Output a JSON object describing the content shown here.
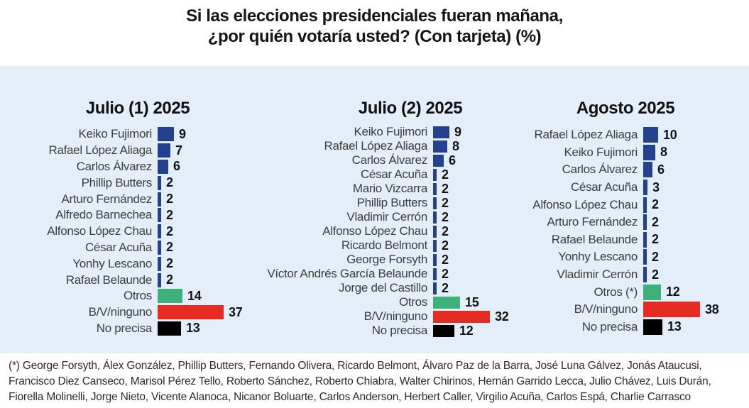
{
  "title": {
    "line1": "Si las elecciones presidenciales fueran mañana,",
    "line2": "¿por quién votaría usted? (Con tarjeta) (%)"
  },
  "palette": {
    "candidate": "#24418F",
    "otros": "#3EB07A",
    "bvninguno": "#E72A22",
    "noprecisa": "#000000",
    "panel_bg": "#E3EEF8"
  },
  "chart_data": [
    {
      "type": "bar",
      "orientation": "horizontal",
      "title": "Julio (1) 2025",
      "xlim": [
        0,
        40
      ],
      "value_unit": "%",
      "rows": [
        {
          "label": "Keiko Fujimori",
          "value": 9,
          "color": "candidate"
        },
        {
          "label": "Rafael López Aliaga",
          "value": 7,
          "color": "candidate"
        },
        {
          "label": "Carlos Álvarez",
          "value": 6,
          "color": "candidate"
        },
        {
          "label": "Phillip Butters",
          "value": 2,
          "color": "candidate"
        },
        {
          "label": "Arturo Fernández",
          "value": 2,
          "color": "candidate"
        },
        {
          "label": "Alfredo Barnechea",
          "value": 2,
          "color": "candidate"
        },
        {
          "label": "Alfonso López Chau",
          "value": 2,
          "color": "candidate"
        },
        {
          "label": "César Acuña",
          "value": 2,
          "color": "candidate"
        },
        {
          "label": "Yonhy Lescano",
          "value": 2,
          "color": "candidate"
        },
        {
          "label": "Rafael Belaunde",
          "value": 2,
          "color": "candidate"
        },
        {
          "label": "Otros",
          "value": 14,
          "color": "otros"
        },
        {
          "label": "B/V/ninguno",
          "value": 37,
          "color": "bvninguno"
        },
        {
          "label": "No precisa",
          "value": 13,
          "color": "noprecisa"
        }
      ]
    },
    {
      "type": "bar",
      "orientation": "horizontal",
      "title": "Julio (2) 2025",
      "xlim": [
        0,
        40
      ],
      "value_unit": "%",
      "rows": [
        {
          "label": "Keiko Fujimori",
          "value": 9,
          "color": "candidate"
        },
        {
          "label": "Rafael López Aliaga",
          "value": 8,
          "color": "candidate"
        },
        {
          "label": "Carlos Álvarez",
          "value": 6,
          "color": "candidate"
        },
        {
          "label": "César Acuña",
          "value": 2,
          "color": "candidate"
        },
        {
          "label": "Mario Vizcarra",
          "value": 2,
          "color": "candidate"
        },
        {
          "label": "Phillip Butters",
          "value": 2,
          "color": "candidate"
        },
        {
          "label": "Vladimir Cerrón",
          "value": 2,
          "color": "candidate"
        },
        {
          "label": "Alfonso López Chau",
          "value": 2,
          "color": "candidate"
        },
        {
          "label": "Ricardo Belmont",
          "value": 2,
          "color": "candidate"
        },
        {
          "label": "George Forsyth",
          "value": 2,
          "color": "candidate"
        },
        {
          "label": "Víctor Andrés García Belaunde",
          "value": 2,
          "color": "candidate"
        },
        {
          "label": "Jorge del Castillo",
          "value": 2,
          "color": "candidate"
        },
        {
          "label": "Otros",
          "value": 15,
          "color": "otros"
        },
        {
          "label": "B/V/ninguno",
          "value": 32,
          "color": "bvninguno"
        },
        {
          "label": "No precisa",
          "value": 12,
          "color": "noprecisa"
        }
      ]
    },
    {
      "type": "bar",
      "orientation": "horizontal",
      "title": "Agosto 2025",
      "xlim": [
        0,
        40
      ],
      "value_unit": "%",
      "rows": [
        {
          "label": "Rafael López Aliaga",
          "value": 10,
          "color": "candidate"
        },
        {
          "label": "Keiko Fujimori",
          "value": 8,
          "color": "candidate"
        },
        {
          "label": "Carlos Álvarez",
          "value": 6,
          "color": "candidate"
        },
        {
          "label": "César Acuña",
          "value": 3,
          "color": "candidate"
        },
        {
          "label": "Alfonso López Chau",
          "value": 2,
          "color": "candidate"
        },
        {
          "label": "Arturo Fernández",
          "value": 2,
          "color": "candidate"
        },
        {
          "label": "Rafael Belaunde",
          "value": 2,
          "color": "candidate"
        },
        {
          "label": "Yonhy Lescano",
          "value": 2,
          "color": "candidate"
        },
        {
          "label": "Vladimir Cerrón",
          "value": 2,
          "color": "candidate"
        },
        {
          "label": "Otros (*)",
          "value": 12,
          "color": "otros"
        },
        {
          "label": "B/V/ninguno",
          "value": 38,
          "color": "bvninguno"
        },
        {
          "label": "No precisa",
          "value": 13,
          "color": "noprecisa"
        }
      ]
    }
  ],
  "footnote": "(*) George Forsyth, Álex González, Phillip Butters, Fernando Olivera, Ricardo Belmont, Álvaro Paz de la Barra, José Luna Gálvez, Jonás Ataucusi, Francisco Diez Canseco, Marisol Pérez Tello, Roberto Sánchez, Roberto Chiabra, Walter Chirinos, Hernán Garrido Lecca, Julio Chávez, Luis Durán, Fiorella Molinelli, Jorge Nieto, Vicente Alanoca, Nicanor Boluarte, Carlos Anderson, Herbert Caller, Virgilio Acuña, Carlos Espá, Charlie Carrasco"
}
